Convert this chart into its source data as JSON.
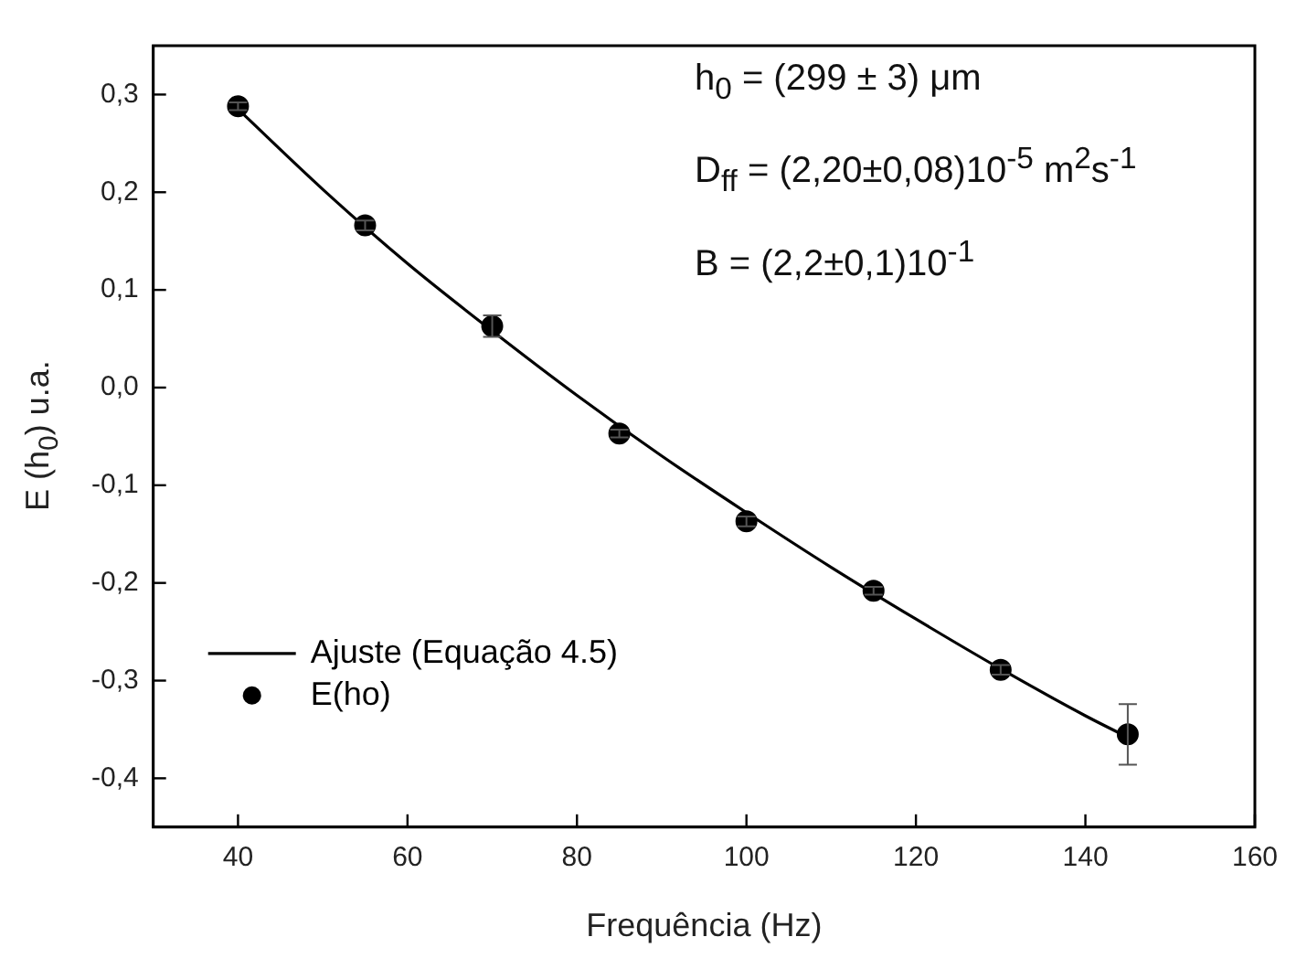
{
  "chart_data": {
    "type": "scatter",
    "xlabel": "Frequência (Hz)",
    "ylabel": "E (h$_{0}$) u.a.",
    "xlim": [
      30,
      160
    ],
    "xticks": [
      40,
      60,
      80,
      100,
      120,
      140,
      160
    ],
    "ylim": [
      -0.45,
      0.35
    ],
    "yticks": [
      {
        "value": -0.4,
        "label": "-0,4"
      },
      {
        "value": -0.3,
        "label": "-0,3"
      },
      {
        "value": -0.2,
        "label": "-0,2"
      },
      {
        "value": -0.1,
        "label": "-0,1"
      },
      {
        "value": 0,
        "label": "0,0"
      },
      {
        "value": 0.1,
        "label": "0,1"
      },
      {
        "value": 0.2,
        "label": "0,2"
      },
      {
        "value": 0.3,
        "label": "0,3"
      }
    ],
    "grid": false,
    "legend": "bottom left",
    "series": [
      {
        "name": "Ajuste (Equação 4.5)",
        "type": "line",
        "marker": "none",
        "color": "#000000",
        "line_style": "solid",
        "x": [
          40,
          50,
          60,
          70,
          80,
          90,
          100,
          110,
          120,
          130,
          140,
          145
        ],
        "values": [
          0.285,
          0.203,
          0.127,
          0.058,
          -0.008,
          -0.07,
          -0.128,
          -0.184,
          -0.237,
          -0.288,
          -0.336,
          -0.358
        ]
      },
      {
        "name": "E(ho)",
        "type": "scatter",
        "marker": "circle",
        "color": "#000000",
        "x": [
          40,
          55,
          70,
          85,
          100,
          115,
          130,
          145
        ],
        "values": [
          0.288,
          0.166,
          0.063,
          -0.047,
          -0.137,
          -0.208,
          -0.289,
          -0.355
        ],
        "errors": [
          0.004,
          0.005,
          0.011,
          0.004,
          0.005,
          0.004,
          0.005,
          0.031
        ]
      }
    ],
    "annotations": [
      "h$_{0}$  = (299 ± 3) μm",
      "D$_{ff}$ = (2,20±0,08)10$^{-5}$ m$^{2}$s$^{-1}$",
      "B  = (2,2±0,1)10$^{-1}$"
    ]
  }
}
